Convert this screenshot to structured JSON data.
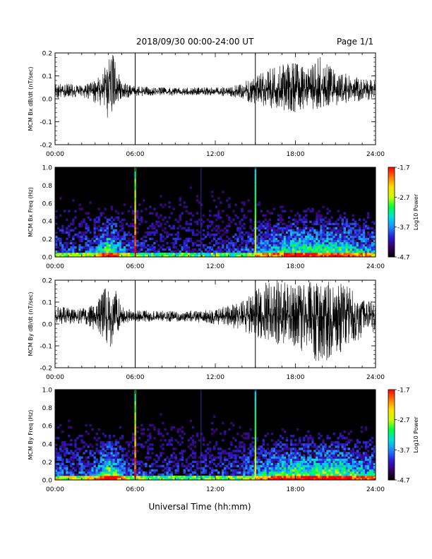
{
  "header": {
    "title": "2018/09/30   00:00-24:00 UT",
    "page": "Page 1/1"
  },
  "footer": {
    "xlabel": "Universal Time (hh:mm)"
  },
  "colors": {
    "trace": "#000000",
    "colorbar": [
      "#000000",
      "#3a0066",
      "#2a1fd6",
      "#1e8cff",
      "#00e0e0",
      "#00ff40",
      "#c8ff00",
      "#ffe000",
      "#ff7a00",
      "#ff0000"
    ]
  },
  "chart_data": [
    {
      "type": "line",
      "panel": "bx-waveform",
      "ylabel": "MCM Bx dB/dt (nT/sec)",
      "xlim": [
        0,
        24
      ],
      "ylim": [
        -0.2,
        0.2
      ],
      "xticks": [
        "00:00",
        "06:00",
        "12:00",
        "18:00",
        "24:00"
      ],
      "yticks": [
        "-0.2",
        "-0.1",
        "0.0",
        "0.1",
        "0.2"
      ],
      "vlines": [
        6.0,
        15.0
      ],
      "envelope": {
        "x": [
          0,
          1,
          2,
          3,
          3.5,
          4,
          4.3,
          4.6,
          5,
          6,
          8,
          10,
          12,
          13,
          14,
          15,
          16,
          17,
          18,
          19,
          20,
          21,
          22,
          23,
          24
        ],
        "center": [
          0.035,
          0.035,
          0.035,
          0.035,
          0.035,
          0.04,
          0.04,
          0.04,
          0.035,
          0.03,
          0.03,
          0.03,
          0.03,
          0.03,
          0.035,
          0.04,
          0.04,
          0.04,
          0.045,
          0.045,
          0.04,
          0.04,
          0.04,
          0.04,
          0.04
        ],
        "upper": [
          0.07,
          0.065,
          0.06,
          0.08,
          0.12,
          0.19,
          0.2,
          0.14,
          0.07,
          0.055,
          0.05,
          0.05,
          0.05,
          0.055,
          0.07,
          0.1,
          0.13,
          0.15,
          0.16,
          0.13,
          0.2,
          0.12,
          0.11,
          0.09,
          0.08
        ],
        "lower": [
          0.0,
          0.005,
          0.01,
          -0.02,
          -0.04,
          -0.1,
          -0.08,
          -0.03,
          0.0,
          0.01,
          0.015,
          0.015,
          0.015,
          0.01,
          0.0,
          -0.03,
          -0.04,
          -0.05,
          -0.06,
          -0.05,
          -0.04,
          -0.03,
          -0.02,
          -0.01,
          0.0
        ]
      }
    },
    {
      "type": "heatmap",
      "panel": "bx-spectrogram",
      "ylabel": "MCM Bx Freq (Hz)",
      "xlim": [
        0,
        24
      ],
      "ylim": [
        0,
        1.0
      ],
      "xticks": [
        "00:00",
        "06:00",
        "12:00",
        "18:00",
        "24:00"
      ],
      "yticks": [
        "0.0",
        "0.2",
        "0.4",
        "0.6",
        "0.8",
        "1.0"
      ],
      "colorbar": {
        "label": "Log10 Power",
        "range": [
          -4.7,
          -1.7
        ],
        "ticks": [
          "-1.7",
          "-2.7",
          "-3.7",
          "-4.7"
        ]
      },
      "vlines": [
        6.0,
        15.0
      ],
      "activity": {
        "x": [
          0,
          1,
          2,
          3,
          3.5,
          4,
          4.5,
          5,
          6,
          8,
          10,
          12,
          14,
          15,
          16,
          17,
          18,
          19,
          20,
          21,
          22,
          23,
          24
        ],
        "level": [
          0.35,
          0.3,
          0.3,
          0.4,
          0.65,
          0.85,
          0.7,
          0.4,
          0.25,
          0.2,
          0.2,
          0.2,
          0.3,
          0.45,
          0.55,
          0.65,
          0.75,
          0.7,
          0.7,
          0.75,
          0.65,
          0.55,
          0.5
        ]
      }
    },
    {
      "type": "line",
      "panel": "by-waveform",
      "ylabel": "MCM By dB/dt (nT/sec)",
      "xlim": [
        0,
        24
      ],
      "ylim": [
        -0.2,
        0.2
      ],
      "xticks": [
        "00:00",
        "06:00",
        "12:00",
        "18:00",
        "24:00"
      ],
      "yticks": [
        "-0.2",
        "-0.1",
        "0.0",
        "0.1",
        "0.2"
      ],
      "vlines": [
        6.0,
        15.0
      ],
      "envelope": {
        "x": [
          0,
          1,
          2,
          3,
          3.5,
          4,
          4.3,
          4.6,
          5,
          6,
          8,
          10,
          12,
          13,
          14,
          15,
          16,
          17,
          18,
          19,
          20,
          21,
          22,
          23,
          24
        ],
        "center": [
          0.035,
          0.035,
          0.035,
          0.035,
          0.035,
          0.03,
          0.03,
          0.035,
          0.03,
          0.03,
          0.03,
          0.03,
          0.03,
          0.035,
          0.04,
          0.04,
          0.04,
          0.04,
          0.04,
          0.04,
          0.04,
          0.04,
          0.04,
          0.04,
          0.04
        ],
        "upper": [
          0.08,
          0.075,
          0.07,
          0.1,
          0.14,
          0.2,
          0.2,
          0.15,
          0.08,
          0.065,
          0.06,
          0.06,
          0.065,
          0.09,
          0.11,
          0.15,
          0.2,
          0.2,
          0.17,
          0.2,
          0.2,
          0.19,
          0.18,
          0.12,
          0.1
        ],
        "lower": [
          -0.005,
          0.0,
          0.0,
          -0.03,
          -0.06,
          -0.12,
          -0.1,
          -0.05,
          0.0,
          0.01,
          0.01,
          0.01,
          0.0,
          -0.02,
          -0.03,
          -0.06,
          -0.09,
          -0.1,
          -0.1,
          -0.16,
          -0.18,
          -0.15,
          -0.1,
          -0.07,
          -0.04
        ]
      }
    },
    {
      "type": "heatmap",
      "panel": "by-spectrogram",
      "ylabel": "MCM By Freq (Hz)",
      "xlim": [
        0,
        24
      ],
      "ylim": [
        0,
        1.0
      ],
      "xticks": [
        "00:00",
        "06:00",
        "12:00",
        "18:00",
        "24:00"
      ],
      "yticks": [
        "0.0",
        "0.2",
        "0.4",
        "0.6",
        "0.8",
        "1.0"
      ],
      "colorbar": {
        "label": "Log10 Power",
        "range": [
          -4.7,
          -1.7
        ],
        "ticks": [
          "-1.7",
          "-2.7",
          "-3.7",
          "-4.7"
        ]
      },
      "vlines": [
        6.0,
        15.0
      ],
      "activity": {
        "x": [
          0,
          1,
          2,
          3,
          3.5,
          4,
          4.5,
          5,
          6,
          8,
          10,
          12,
          14,
          15,
          16,
          17,
          18,
          19,
          20,
          21,
          22,
          23,
          24
        ],
        "level": [
          0.4,
          0.35,
          0.35,
          0.45,
          0.7,
          0.9,
          0.75,
          0.45,
          0.3,
          0.22,
          0.22,
          0.22,
          0.35,
          0.5,
          0.6,
          0.7,
          0.8,
          0.75,
          0.8,
          0.85,
          0.7,
          0.6,
          0.55
        ]
      }
    }
  ]
}
